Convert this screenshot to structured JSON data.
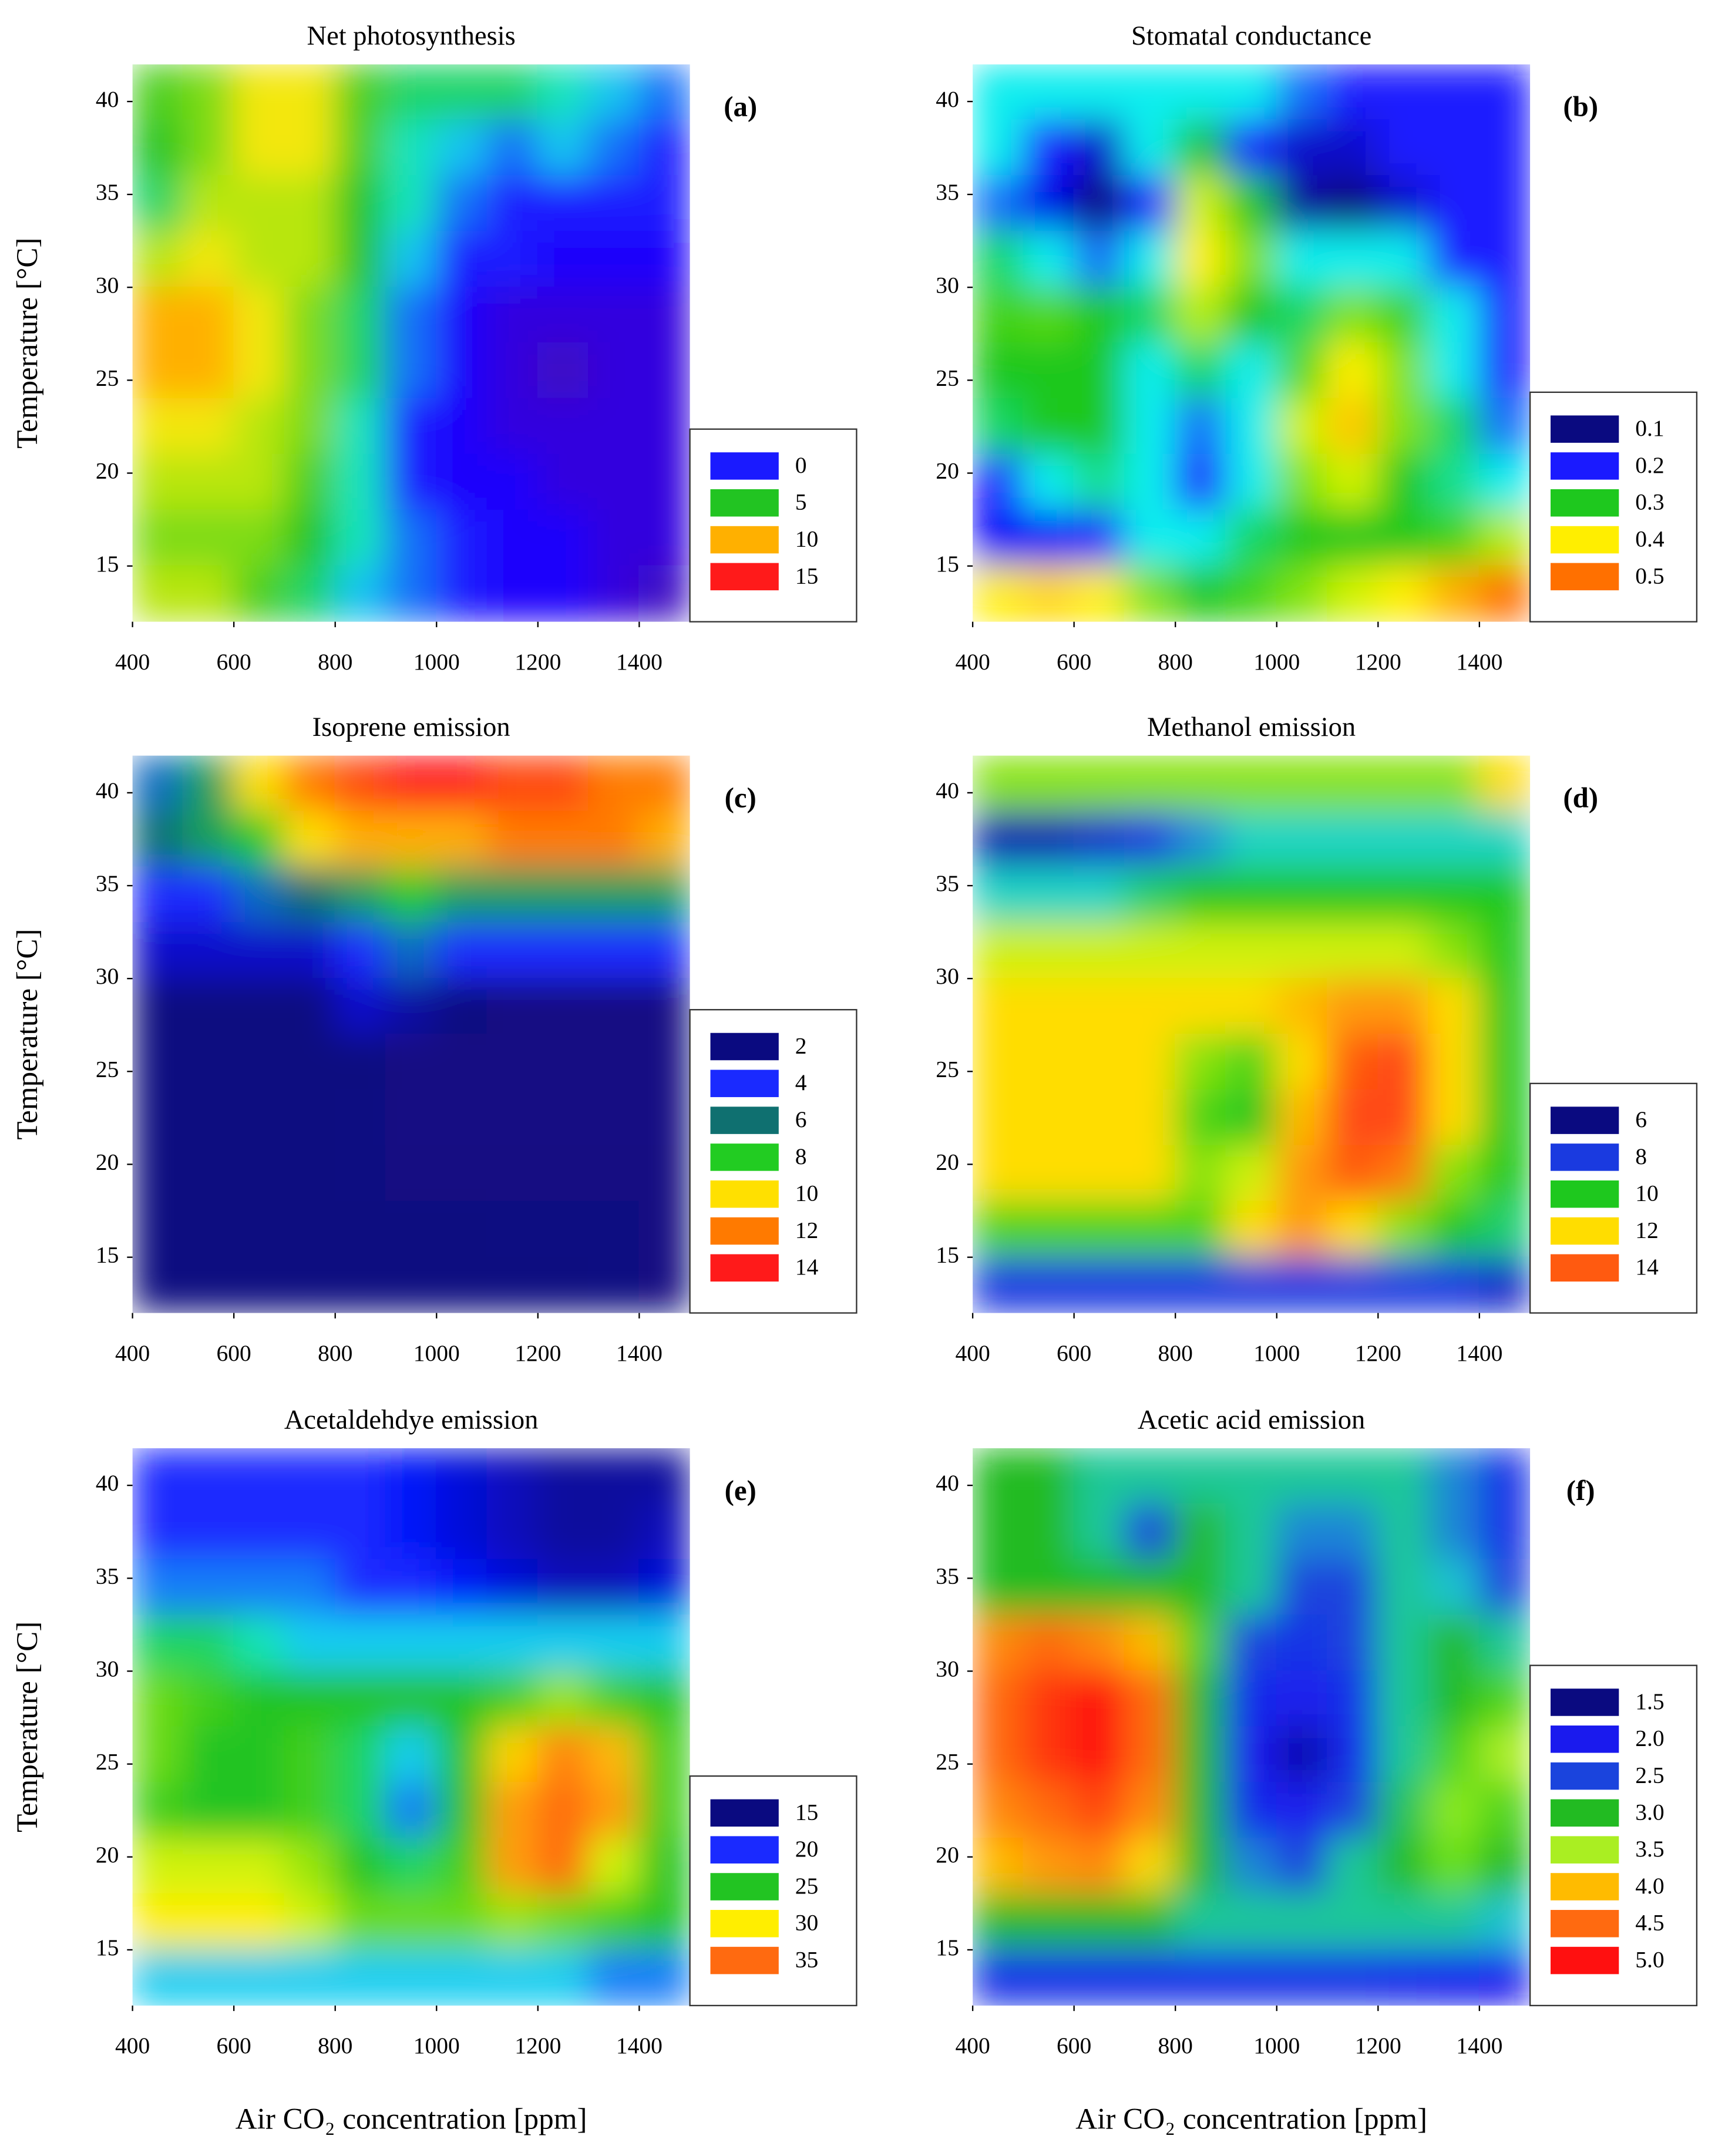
{
  "chart_data": [
    {
      "type": "heatmap",
      "title": "Net photosynthesis",
      "panel_label": "(a)",
      "ylabel": "Temperature [°C]",
      "xlim": [
        400,
        1500
      ],
      "ylim": [
        12,
        42
      ],
      "xticks": [
        400,
        600,
        800,
        1000,
        1200,
        1400
      ],
      "yticks": [
        15,
        20,
        25,
        30,
        35,
        40
      ],
      "x": [
        450,
        550,
        650,
        750,
        850,
        950,
        1050,
        1150,
        1250,
        1350,
        1450
      ],
      "y": [
        40.5,
        37.5,
        34.5,
        31.5,
        28.5,
        25.5,
        22.5,
        19.5,
        16.5,
        13.5
      ],
      "under_color": "#4b0a8c",
      "legend": [
        {
          "value": 0,
          "color": "#1a1aff"
        },
        {
          "value": 5,
          "color": "#22c422"
        },
        {
          "value": 10,
          "color": "#ffb000"
        },
        {
          "value": 15,
          "color": "#ff1a1a"
        }
      ],
      "z": [
        [
          6,
          7,
          9,
          9,
          6,
          4,
          4,
          4,
          3,
          2,
          1
        ],
        [
          5,
          7,
          9,
          9,
          6,
          3,
          2,
          1,
          2,
          1,
          0
        ],
        [
          4,
          8,
          8,
          8,
          5,
          3,
          1,
          0,
          0,
          0,
          0
        ],
        [
          8,
          9,
          8,
          8,
          5,
          2,
          0,
          0,
          -1,
          -1,
          -1
        ],
        [
          10,
          10,
          9,
          7,
          4,
          1,
          -1,
          -2,
          -2,
          -2,
          -2
        ],
        [
          10,
          10,
          9,
          7,
          4,
          1,
          -1,
          -2,
          -3,
          -2,
          -2
        ],
        [
          9,
          9,
          8,
          7,
          3,
          0,
          -1,
          -2,
          -2,
          -2,
          -2
        ],
        [
          8,
          8,
          8,
          6,
          3,
          0,
          -1,
          -1,
          -2,
          -2,
          -2
        ],
        [
          7,
          7,
          7,
          5,
          3,
          1,
          0,
          -1,
          -1,
          -2,
          -2
        ],
        [
          8,
          8,
          6,
          4,
          2,
          1,
          0,
          -1,
          -1,
          -2,
          -3
        ]
      ]
    },
    {
      "type": "heatmap",
      "title": "Stomatal conductance",
      "panel_label": "(b)",
      "xlim": [
        400,
        1500
      ],
      "ylim": [
        12,
        42
      ],
      "xticks": [
        400,
        600,
        800,
        1000,
        1200,
        1400
      ],
      "yticks": [
        15,
        20,
        25,
        30,
        35,
        40
      ],
      "x": [
        450,
        550,
        650,
        750,
        850,
        950,
        1050,
        1150,
        1250,
        1350,
        1450
      ],
      "y": [
        40.5,
        37.5,
        34.5,
        31.5,
        28.5,
        25.5,
        22.5,
        19.5,
        16.5,
        13.5
      ],
      "over_color": "#ff2a10",
      "legend": [
        {
          "value": 0.1,
          "color": "#0a0a80"
        },
        {
          "value": 0.2,
          "color": "#1a1aff"
        },
        {
          "value": 0.3,
          "color": "#1ec81e"
        },
        {
          "value": 0.4,
          "color": "#ffee00"
        },
        {
          "value": 0.5,
          "color": "#ff7000"
        }
      ],
      "z": [
        [
          0.25,
          0.25,
          0.25,
          0.25,
          0.25,
          0.25,
          0.22,
          0.2,
          0.2,
          0.2,
          0.2
        ],
        [
          0.25,
          0.2,
          0.15,
          0.25,
          0.3,
          0.2,
          0.15,
          0.15,
          0.2,
          0.2,
          0.2
        ],
        [
          0.22,
          0.17,
          0.1,
          0.2,
          0.38,
          0.3,
          0.12,
          0.1,
          0.15,
          0.2,
          0.2
        ],
        [
          0.28,
          0.25,
          0.22,
          0.25,
          0.4,
          0.35,
          0.25,
          0.25,
          0.25,
          0.2,
          0.2
        ],
        [
          0.32,
          0.33,
          0.3,
          0.28,
          0.37,
          0.3,
          0.28,
          0.35,
          0.32,
          0.25,
          0.2
        ],
        [
          0.3,
          0.3,
          0.3,
          0.25,
          0.28,
          0.25,
          0.33,
          0.4,
          0.35,
          0.25,
          0.2
        ],
        [
          0.28,
          0.3,
          0.3,
          0.25,
          0.22,
          0.25,
          0.38,
          0.43,
          0.35,
          0.28,
          0.22
        ],
        [
          0.2,
          0.25,
          0.27,
          0.25,
          0.2,
          0.25,
          0.35,
          0.38,
          0.3,
          0.27,
          0.25
        ],
        [
          0.18,
          0.18,
          0.2,
          0.25,
          0.25,
          0.28,
          0.3,
          0.3,
          0.3,
          0.32,
          0.37
        ],
        [
          0.4,
          0.42,
          0.4,
          0.35,
          0.3,
          0.32,
          0.35,
          0.38,
          0.4,
          0.45,
          0.5
        ]
      ]
    },
    {
      "type": "heatmap",
      "title": "Isoprene emission",
      "panel_label": "(c)",
      "ylabel": "Temperature [°C]",
      "xlim": [
        400,
        1500
      ],
      "ylim": [
        12,
        42
      ],
      "xticks": [
        400,
        600,
        800,
        1000,
        1200,
        1400
      ],
      "yticks": [
        15,
        20,
        25,
        30,
        35,
        40
      ],
      "x": [
        450,
        550,
        650,
        750,
        850,
        950,
        1050,
        1150,
        1250,
        1350,
        1450
      ],
      "y": [
        40.5,
        37.5,
        34.5,
        31.5,
        28.5,
        25.5,
        22.5,
        19.5,
        16.5,
        13.5
      ],
      "under_color": "#4b0a8c",
      "legend": [
        {
          "value": 2,
          "color": "#0a0a80"
        },
        {
          "value": 4,
          "color": "#1a2aff"
        },
        {
          "value": 6,
          "color": "#0f7070"
        },
        {
          "value": 8,
          "color": "#22cc22"
        },
        {
          "value": 10,
          "color": "#ffe000"
        },
        {
          "value": 12,
          "color": "#ff7a00"
        },
        {
          "value": 14,
          "color": "#ff1a1a"
        }
      ],
      "z": [
        [
          5,
          7,
          10,
          12,
          13,
          14,
          14,
          13,
          13,
          12,
          12
        ],
        [
          6,
          7,
          8,
          10,
          11,
          11,
          11,
          12,
          12,
          12,
          11
        ],
        [
          4,
          4,
          5,
          6,
          7,
          8,
          7,
          7,
          7,
          7,
          7
        ],
        [
          3,
          3,
          3,
          3,
          4,
          5,
          4,
          4,
          4,
          4,
          4
        ],
        [
          2,
          2,
          2,
          2,
          3,
          2.5,
          2,
          1.5,
          1.5,
          1.5,
          1.5
        ],
        [
          2,
          2,
          2,
          2,
          2,
          1.5,
          1.5,
          1.5,
          1.5,
          1.5,
          1.5
        ],
        [
          2,
          2,
          2,
          2,
          1.8,
          1.5,
          1.5,
          1.5,
          1.5,
          1.5,
          1.5
        ],
        [
          2,
          2,
          2,
          2,
          1.8,
          1.7,
          1.7,
          1.6,
          1.6,
          1.6,
          1.6
        ],
        [
          2,
          2,
          2,
          2,
          2,
          2,
          2,
          1.8,
          1.8,
          1.8,
          1.7
        ],
        [
          2,
          2,
          2,
          2,
          2,
          2,
          2,
          2,
          2,
          1.8,
          1.7
        ]
      ]
    },
    {
      "type": "heatmap",
      "title": "Methanol emission",
      "panel_label": "(d)",
      "xlim": [
        400,
        1500
      ],
      "ylim": [
        12,
        42
      ],
      "xticks": [
        400,
        600,
        800,
        1000,
        1200,
        1400
      ],
      "yticks": [
        15,
        20,
        25,
        30,
        35,
        40
      ],
      "x": [
        450,
        550,
        650,
        750,
        850,
        950,
        1050,
        1150,
        1250,
        1350,
        1450
      ],
      "y": [
        40.5,
        37.5,
        34.5,
        31.5,
        28.5,
        25.5,
        22.5,
        19.5,
        16.5,
        13.5
      ],
      "over_color": "#ff1a1a",
      "legend": [
        {
          "value": 6,
          "color": "#0a0a80"
        },
        {
          "value": 8,
          "color": "#1a3ae0"
        },
        {
          "value": 10,
          "color": "#1ec81e"
        },
        {
          "value": 12,
          "color": "#ffdd00"
        },
        {
          "value": 14,
          "color": "#ff5a10"
        }
      ],
      "z": [
        [
          11,
          11,
          11,
          11,
          11,
          11,
          11,
          11,
          11,
          11,
          12
        ],
        [
          7,
          7,
          7.5,
          8,
          8.5,
          9,
          9,
          9,
          9,
          9,
          9
        ],
        [
          9,
          9,
          9,
          9.5,
          10,
          10,
          10,
          10,
          10,
          10,
          10
        ],
        [
          11.5,
          11.5,
          11.5,
          11.5,
          11.5,
          11.5,
          11.5,
          11.5,
          11.5,
          11,
          10
        ],
        [
          12,
          12,
          12,
          12,
          12,
          12,
          12.5,
          13,
          13,
          12,
          10
        ],
        [
          12,
          12,
          12,
          12,
          11,
          10.5,
          12,
          14,
          14.5,
          12,
          10
        ],
        [
          12,
          12,
          12,
          12,
          10.5,
          10,
          12.5,
          14.5,
          14.5,
          12,
          10
        ],
        [
          12,
          12,
          12,
          12,
          11,
          11.5,
          13,
          14,
          13.5,
          11,
          10
        ],
        [
          10.5,
          10.5,
          10.5,
          10.5,
          10.5,
          12,
          13,
          12,
          11,
          10,
          9.5
        ],
        [
          8,
          8,
          8,
          8,
          8,
          8,
          8,
          8,
          8,
          8,
          7.5
        ]
      ]
    },
    {
      "type": "heatmap",
      "title": "Acetaldehdye emission",
      "panel_label": "(e)",
      "ylabel": "Temperature [°C]",
      "xlabel": "Air CO₂ concentration [ppm]",
      "xlim": [
        400,
        1500
      ],
      "ylim": [
        12,
        42
      ],
      "xticks": [
        400,
        600,
        800,
        1000,
        1200,
        1400
      ],
      "yticks": [
        15,
        20,
        25,
        30,
        35,
        40
      ],
      "x": [
        450,
        550,
        650,
        750,
        850,
        950,
        1050,
        1150,
        1250,
        1350,
        1450
      ],
      "y": [
        40.5,
        37.5,
        34.5,
        31.5,
        28.5,
        25.5,
        22.5,
        19.5,
        16.5,
        13.5
      ],
      "over_color": "#ff1a1a",
      "legend": [
        {
          "value": 15,
          "color": "#0a0a80"
        },
        {
          "value": 20,
          "color": "#1a2aff"
        },
        {
          "value": 25,
          "color": "#22c422"
        },
        {
          "value": 30,
          "color": "#ffee00"
        },
        {
          "value": 35,
          "color": "#ff6a10"
        }
      ],
      "z": [
        [
          20,
          20,
          20,
          20,
          20,
          19,
          18,
          17,
          16,
          16,
          16
        ],
        [
          20,
          20,
          20,
          20,
          20,
          19,
          18,
          17,
          16,
          16,
          17
        ],
        [
          21,
          21,
          21,
          21,
          20,
          20,
          19,
          18,
          17,
          17,
          18
        ],
        [
          24,
          24,
          23,
          22,
          22,
          22,
          22,
          22,
          22,
          22,
          22
        ],
        [
          27,
          26,
          25,
          25,
          25,
          25,
          25,
          26,
          28,
          26,
          25
        ],
        [
          27,
          25,
          25,
          26,
          24,
          22,
          25,
          31,
          34,
          32,
          26
        ],
        [
          26,
          25,
          25,
          26,
          24,
          21,
          25,
          33,
          35,
          33,
          26
        ],
        [
          29,
          29,
          29,
          28,
          25,
          24,
          26,
          33,
          35,
          29,
          25
        ],
        [
          30,
          30,
          30,
          29,
          27,
          27,
          27,
          28,
          27,
          26,
          25
        ],
        [
          22,
          22,
          22,
          22,
          22,
          22,
          22,
          22,
          22,
          21,
          21
        ]
      ]
    },
    {
      "type": "heatmap",
      "title": "Acetic acid emission",
      "panel_label": "(f)",
      "xlabel": "Air CO₂ concentration [ppm]",
      "xlim": [
        400,
        1500
      ],
      "ylim": [
        12,
        42
      ],
      "xticks": [
        400,
        600,
        800,
        1000,
        1200,
        1400
      ],
      "yticks": [
        15,
        20,
        25,
        30,
        35,
        40
      ],
      "x": [
        450,
        550,
        650,
        750,
        850,
        950,
        1050,
        1150,
        1250,
        1350,
        1450
      ],
      "y": [
        40.5,
        37.5,
        34.5,
        31.5,
        28.5,
        25.5,
        22.5,
        19.5,
        16.5,
        13.5
      ],
      "under_color": "#3a0a80",
      "legend": [
        {
          "value": 1.5,
          "color": "#0a0a80"
        },
        {
          "value": 2,
          "label": "2.0",
          "color": "#1a1aee"
        },
        {
          "value": 2.5,
          "color": "#1a44dd"
        },
        {
          "value": 3,
          "label": "3.0",
          "color": "#22bb22"
        },
        {
          "value": 3.5,
          "color": "#aaee22"
        },
        {
          "value": 4,
          "label": "4.0",
          "color": "#ffbb00"
        },
        {
          "value": 4.5,
          "color": "#ff6a10"
        },
        {
          "value": 5,
          "label": "5.0",
          "color": "#ff1010"
        }
      ],
      "z": [
        [
          3,
          3,
          2.8,
          2.8,
          2.8,
          2.8,
          2.8,
          2.8,
          2.8,
          2.6,
          2.3
        ],
        [
          3,
          3,
          2.8,
          2.5,
          3,
          2.8,
          2.6,
          2.6,
          2.8,
          2.6,
          2.3
        ],
        [
          3,
          3,
          3,
          3,
          3,
          2.8,
          2.5,
          2.5,
          2.8,
          2.7,
          2.5
        ],
        [
          4.3,
          4.5,
          4.3,
          4,
          3.2,
          2.5,
          2.3,
          2.5,
          2.8,
          3,
          2.8
        ],
        [
          4.5,
          4.8,
          5,
          4.5,
          3,
          2.2,
          2,
          2.3,
          2.8,
          3,
          3.2
        ],
        [
          4.5,
          4.8,
          5,
          4.5,
          3,
          2,
          1.7,
          2.2,
          2.8,
          3.2,
          3.5
        ],
        [
          4.3,
          4.5,
          4.7,
          4.3,
          3,
          2.2,
          2,
          2.5,
          2.9,
          3.4,
          3.2
        ],
        [
          4,
          4.2,
          4.3,
          3.9,
          3,
          2.6,
          2.5,
          2.8,
          3,
          3.3,
          3
        ],
        [
          3,
          3,
          3,
          3,
          2.8,
          2.8,
          2.8,
          2.8,
          2.8,
          2.8,
          2.7
        ],
        [
          2.3,
          2.3,
          2.3,
          2.3,
          2.3,
          2.3,
          2.3,
          2.3,
          2.2,
          2.1,
          2
        ]
      ]
    }
  ]
}
